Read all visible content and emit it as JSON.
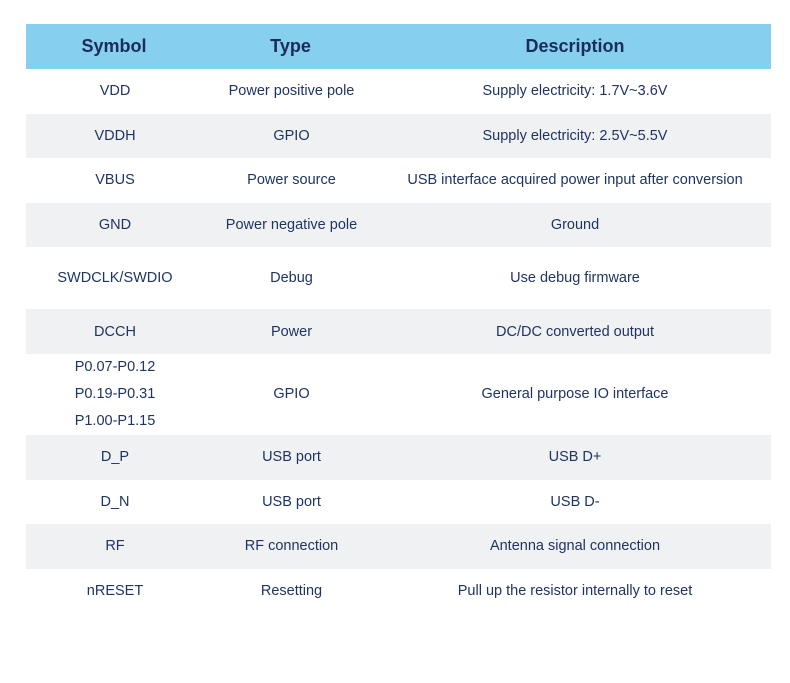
{
  "table": {
    "headers": {
      "symbol": "Symbol",
      "type": "Type",
      "description": "Description"
    },
    "rows": [
      {
        "symbol": "VDD",
        "type": "Power positive pole",
        "description": "Supply electricity: 1.7V~3.6V"
      },
      {
        "symbol": "VDDH",
        "type": "GPIO",
        "description": "Supply electricity: 2.5V~5.5V"
      },
      {
        "symbol": "VBUS",
        "type": "Power source",
        "description": "USB interface acquired power input after conversion"
      },
      {
        "symbol": "GND",
        "type": "Power negative pole",
        "description": "Ground"
      },
      {
        "symbol": "SWDCLK/SWDIO",
        "type": "Debug",
        "description": "Use debug firmware"
      },
      {
        "symbol": "DCCH",
        "type": "Power",
        "description": "DC/DC converted output"
      },
      {
        "symbol_lines": [
          "P0.07-P0.12",
          "P0.19-P0.31",
          "P1.00-P1.15"
        ],
        "type": "GPIO",
        "description": "General purpose IO interface"
      },
      {
        "symbol": "D_P",
        "type": "USB port",
        "description": "USB D+"
      },
      {
        "symbol": "D_N",
        "type": "USB port",
        "description": "USB D-"
      },
      {
        "symbol": "RF",
        "type": "RF connection",
        "description": "Antenna signal connection"
      },
      {
        "symbol": "nRESET",
        "type": "Resetting",
        "description": "Pull up the resistor internally to reset"
      }
    ]
  }
}
